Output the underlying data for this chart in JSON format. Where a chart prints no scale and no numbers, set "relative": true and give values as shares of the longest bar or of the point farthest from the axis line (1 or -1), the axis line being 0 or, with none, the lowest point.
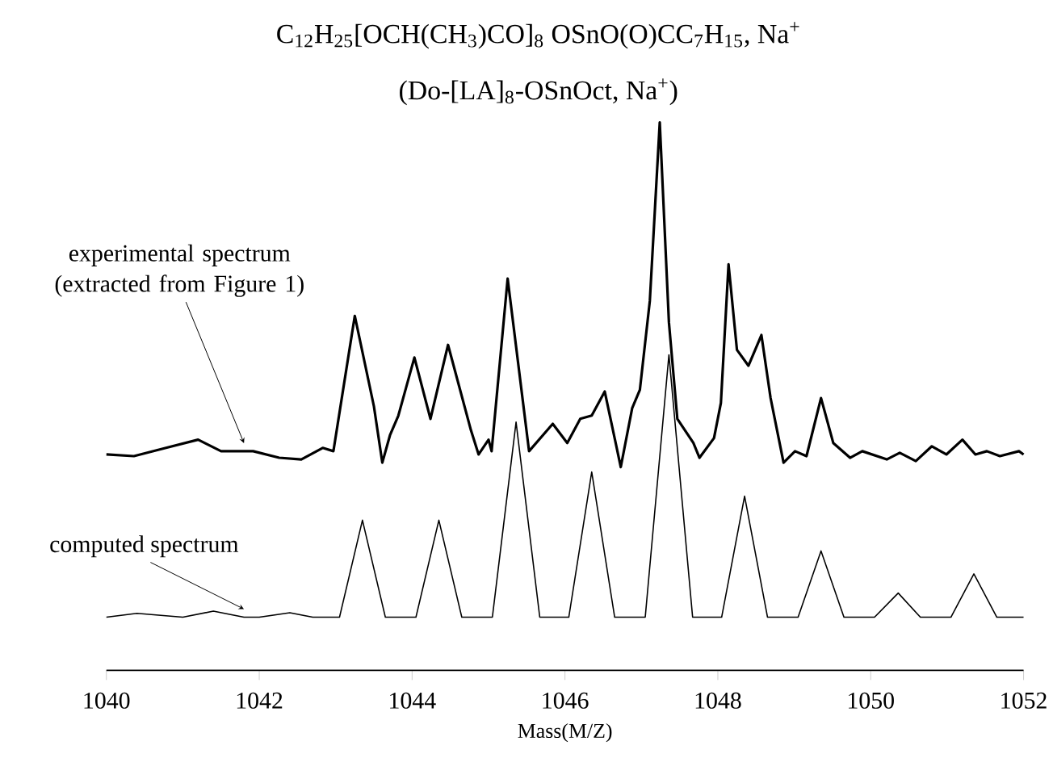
{
  "chart_data": {
    "type": "line",
    "relative": true,
    "title": "C$_{12}$H$_{25}$[OCH(CH$_{3}$)CO]$_{8}$ OSnO(O)CC$_{7}$H$_{15}$, Na$^{+}$",
    "subtitle": "(Do-[LA]$_{8}$-OSnOct, Na$^{+}$)",
    "xlabel": "Mass(M/Z)",
    "xlim": [
      1040,
      1052
    ],
    "xticks": [
      1040,
      1042,
      1044,
      1046,
      1048,
      1050,
      1052
    ],
    "series": [
      {
        "color": "#000000",
        "x": [
          1040.0,
          1040.36,
          1040.78,
          1041.2,
          1041.5,
          1041.92,
          1042.26,
          1042.55,
          1042.83,
          1042.97,
          1043.25,
          1043.5,
          1043.61,
          1043.71,
          1043.82,
          1044.03,
          1044.24,
          1044.47,
          1044.77,
          1044.87,
          1045.0,
          1045.04,
          1045.25,
          1045.53,
          1045.84,
          1046.03,
          1046.2,
          1046.35,
          1046.52,
          1046.73,
          1046.88,
          1046.98,
          1047.11,
          1047.24,
          1047.36,
          1047.47,
          1047.68,
          1047.76,
          1047.95,
          1048.04,
          1048.14,
          1048.25,
          1048.4,
          1048.57,
          1048.69,
          1048.86,
          1049.01,
          1049.16,
          1049.35,
          1049.51,
          1049.73,
          1049.89,
          1050.21,
          1050.38,
          1050.59,
          1050.8,
          1050.99,
          1051.2,
          1051.37,
          1051.52,
          1051.69,
          1051.94,
          1052.0
        ],
        "values": [
          0.394,
          0.391,
          0.406,
          0.421,
          0.4,
          0.4,
          0.388,
          0.385,
          0.406,
          0.4,
          0.647,
          0.482,
          0.379,
          0.429,
          0.465,
          0.571,
          0.459,
          0.594,
          0.438,
          0.394,
          0.421,
          0.4,
          0.715,
          0.4,
          0.45,
          0.415,
          0.459,
          0.465,
          0.509,
          0.371,
          0.479,
          0.512,
          0.674,
          1.0,
          0.635,
          0.459,
          0.415,
          0.388,
          0.424,
          0.488,
          0.741,
          0.585,
          0.556,
          0.612,
          0.497,
          0.379,
          0.4,
          0.391,
          0.497,
          0.415,
          0.388,
          0.4,
          0.385,
          0.397,
          0.382,
          0.409,
          0.394,
          0.421,
          0.394,
          0.4,
          0.391,
          0.4,
          0.394
        ]
      },
      {
        "color": "#000000",
        "x": [
          1040,
          1040.4,
          1041.0,
          1041.4,
          1041.8,
          1042.0,
          1042.4,
          1042.7,
          1043.05,
          1043.35,
          1043.65,
          1044.05,
          1044.35,
          1044.65,
          1045.05,
          1045.36,
          1045.67,
          1046.05,
          1046.35,
          1046.65,
          1047.05,
          1047.36,
          1047.67,
          1048.05,
          1048.35,
          1048.65,
          1049.05,
          1049.35,
          1049.65,
          1050.05,
          1050.36,
          1050.65,
          1051.05,
          1051.35,
          1051.65,
          1052
        ],
        "values": [
          0.097,
          0.104,
          0.097,
          0.108,
          0.097,
          0.097,
          0.105,
          0.097,
          0.097,
          0.274,
          0.097,
          0.097,
          0.274,
          0.097,
          0.097,
          0.453,
          0.097,
          0.097,
          0.362,
          0.097,
          0.097,
          0.576,
          0.097,
          0.097,
          0.318,
          0.097,
          0.097,
          0.218,
          0.097,
          0.097,
          0.141,
          0.097,
          0.097,
          0.176,
          0.097,
          0.097
        ]
      }
    ],
    "annotations": [
      {
        "text": "experimental spectrum (extracted from Figure 1)",
        "x": 1041.8,
        "y": 0.4
      },
      {
        "text": "computed spectrum",
        "x": 1041.8,
        "y": 0.097
      }
    ]
  }
}
